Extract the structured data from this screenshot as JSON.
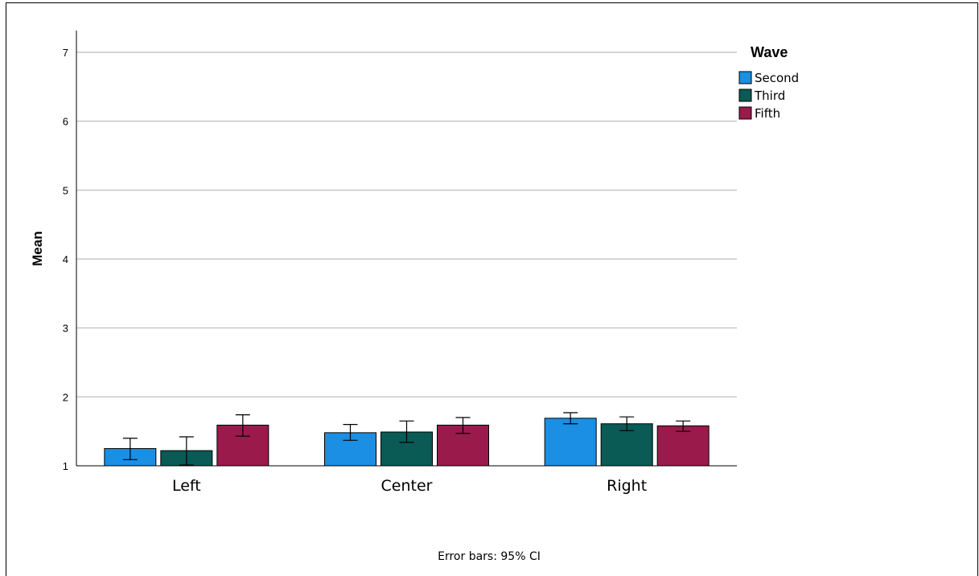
{
  "chart_data": {
    "type": "bar",
    "ylabel": "Mean",
    "ylim": [
      1,
      7
    ],
    "yticks": [
      "1",
      "2",
      "3",
      "4",
      "5",
      "6",
      "7"
    ],
    "grid": true,
    "categories": [
      "Left",
      "Center",
      "Right"
    ],
    "legend_title": "Wave",
    "legend_position": "top-right",
    "series": [
      {
        "name": "Second",
        "color": "#1a8fe3",
        "values": [
          1.25,
          1.48,
          1.69
        ],
        "err_low": [
          1.09,
          1.37,
          1.61
        ],
        "err_high": [
          1.4,
          1.6,
          1.77
        ]
      },
      {
        "name": "Third",
        "color": "#0a5a56",
        "values": [
          1.22,
          1.49,
          1.61
        ],
        "err_low": [
          1.01,
          1.34,
          1.51
        ],
        "err_high": [
          1.42,
          1.65,
          1.71
        ]
      },
      {
        "name": "Fifth",
        "color": "#9b1a4c",
        "values": [
          1.59,
          1.59,
          1.58
        ],
        "err_low": [
          1.43,
          1.47,
          1.5
        ],
        "err_high": [
          1.74,
          1.7,
          1.65
        ]
      }
    ],
    "footnote": "Error bars: 95% CI"
  }
}
